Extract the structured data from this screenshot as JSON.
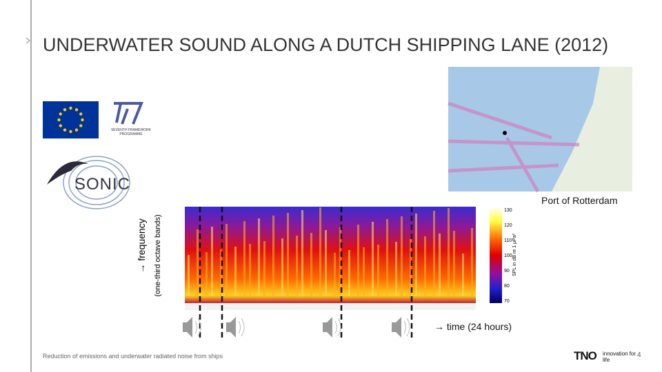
{
  "header": {
    "title": "UNDERWATER SOUND ALONG A DUTCH SHIPPING LANE (2012)"
  },
  "logos": {
    "fp7": "SEVENTH FRAMEWORK PROGRAMME",
    "sonic": "SONIC",
    "tno": "TNO",
    "tno_tagline": "innovation for life"
  },
  "map": {
    "label": "Port of Rotterdam"
  },
  "spectrogram": {
    "y_axis": "→ frequency",
    "y_axis_note": "(one-third octave bands)",
    "x_axis": "→ time (24 hours)",
    "colorbar_label": "SPL in dB re 1 μPa²",
    "colorbar_ticks": [
      130,
      120,
      110,
      100,
      90,
      80,
      70
    ]
  },
  "footer": {
    "text": "Reduction of emissions and underwater radiated noise from ships",
    "page": "4"
  }
}
